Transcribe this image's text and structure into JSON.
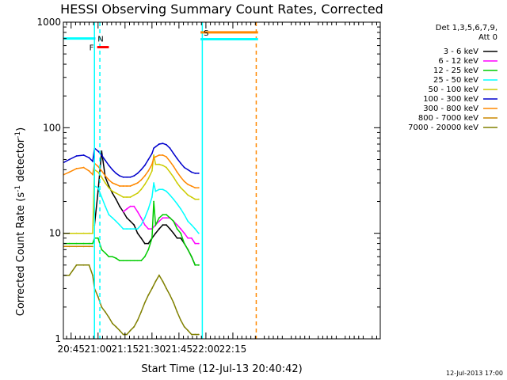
{
  "chart_data": {
    "type": "line",
    "title": "HESSI Observing Summary Count Rates, Corrected",
    "xlabel": "Start Time (12-Jul-13 20:40:42)",
    "ylabel_parts": [
      "Corrected Count Rate (s",
      "-1",
      " detector",
      "-1",
      ")"
    ],
    "yscale": "log",
    "ylim": [
      1,
      1000
    ],
    "y_ticks": [
      1,
      10,
      100,
      1000
    ],
    "y_tick_labels": [
      "1",
      "10",
      "100",
      "1000"
    ],
    "xlim_min": [
      40.7,
      217
    ],
    "x_ticks_min": [
      45,
      60,
      75,
      90,
      105,
      120,
      135
    ],
    "x_tick_labels": [
      "20:45",
      "21:00",
      "21:15",
      "21:30",
      "21:45",
      "22:00",
      "22:15"
    ],
    "legend_title": [
      "Det 1,3,5,6,7,9,",
      "Att 0"
    ],
    "series": [
      {
        "name": "3 - 6 keV",
        "color": "#000000",
        "x": [
          58,
          60,
          62,
          64,
          66,
          68,
          70,
          72,
          74,
          76,
          78,
          80,
          82,
          84,
          86,
          88,
          90,
          92,
          94,
          96,
          98,
          100,
          102,
          104,
          106,
          108,
          110,
          112,
          114,
          116
        ],
        "y": [
          12,
          25,
          60,
          34,
          28,
          24,
          21,
          18,
          16,
          14,
          13,
          12,
          10,
          9,
          8,
          8,
          9,
          10,
          11,
          12,
          12,
          11,
          10,
          9,
          9,
          8,
          7,
          6,
          5,
          5
        ]
      },
      {
        "name": "6 - 12 keV",
        "color": "#ff00ff",
        "x": [
          74,
          76,
          78,
          80,
          82,
          84,
          86,
          88,
          90,
          92,
          94,
          96,
          98,
          100,
          102,
          104,
          106,
          108,
          110,
          112,
          114,
          116
        ],
        "y": [
          16,
          17,
          18,
          18,
          16,
          14,
          12,
          11,
          11,
          12,
          13,
          14,
          14,
          14,
          13,
          12,
          11,
          10,
          9,
          9,
          8,
          8
        ]
      },
      {
        "name": "12 - 25 keV",
        "color": "#00cc00",
        "x": [
          41,
          44,
          48,
          52,
          55,
          57,
          58,
          60,
          62,
          64,
          66,
          68,
          70,
          72,
          74,
          76,
          78,
          80,
          82,
          84,
          86,
          88,
          90,
          91,
          92,
          94,
          96,
          98,
          100,
          102,
          104,
          106,
          108,
          110,
          112,
          114,
          116
        ],
        "y": [
          8,
          8,
          8,
          8,
          8,
          8,
          9,
          9,
          7,
          6.5,
          6,
          6,
          5.8,
          5.5,
          5.5,
          5.5,
          5.5,
          5.5,
          5.5,
          5.5,
          6,
          7,
          9,
          20,
          12,
          14,
          15,
          15,
          14,
          13,
          11,
          10,
          8,
          7,
          6,
          5,
          5
        ]
      },
      {
        "name": "25 - 50 keV",
        "color": "#00ffff",
        "x": [
          58,
          60,
          62,
          64,
          66,
          68,
          70,
          72,
          74,
          76,
          78,
          80,
          82,
          84,
          86,
          88,
          90,
          91,
          92,
          94,
          96,
          98,
          100,
          102,
          104,
          106,
          108,
          110,
          112,
          114,
          116
        ],
        "y": [
          28,
          27,
          22,
          18,
          15,
          14,
          13,
          12,
          11,
          11,
          11,
          11,
          11,
          12,
          14,
          17,
          22,
          30,
          25,
          26,
          26,
          25,
          23,
          21,
          19,
          17,
          15,
          13,
          12,
          11,
          10
        ]
      },
      {
        "name": "50 - 100 keV",
        "color": "#cccc00",
        "x": [
          41,
          44,
          48,
          52,
          55,
          57,
          58,
          60,
          62,
          64,
          66,
          68,
          70,
          72,
          74,
          76,
          78,
          80,
          82,
          84,
          86,
          88,
          90,
          91,
          92,
          94,
          96,
          98,
          100,
          102,
          104,
          106,
          108,
          110,
          112,
          114,
          116
        ],
        "y": [
          10,
          10,
          10,
          10,
          10,
          10,
          40,
          38,
          34,
          30,
          27,
          25,
          24,
          23,
          22,
          22,
          22,
          23,
          24,
          26,
          29,
          33,
          39,
          55,
          45,
          45,
          44,
          42,
          38,
          34,
          30,
          27,
          25,
          23,
          22,
          21,
          21
        ]
      },
      {
        "name": "100 - 300 keV",
        "color": "#0000cc",
        "x": [
          41,
          44,
          48,
          52,
          55,
          57,
          58,
          60,
          62,
          64,
          66,
          68,
          70,
          72,
          74,
          76,
          78,
          80,
          82,
          84,
          86,
          88,
          90,
          91,
          92,
          94,
          96,
          98,
          100,
          102,
          104,
          106,
          108,
          110,
          112,
          114,
          116
        ],
        "y": [
          47,
          50,
          54,
          55,
          52,
          48,
          64,
          60,
          55,
          49,
          44,
          40,
          37,
          35,
          34,
          34,
          34,
          35,
          37,
          40,
          44,
          50,
          57,
          64,
          66,
          70,
          71,
          69,
          64,
          57,
          51,
          46,
          42,
          40,
          38,
          37,
          37
        ]
      },
      {
        "name": "300 - 800 keV",
        "color": "#ff8800",
        "x": [
          41,
          44,
          48,
          52,
          55,
          57,
          58,
          60,
          62,
          64,
          66,
          68,
          70,
          72,
          74,
          76,
          78,
          80,
          82,
          84,
          86,
          88,
          90,
          91,
          92,
          94,
          96,
          98,
          100,
          102,
          104,
          106,
          108,
          110,
          112,
          114,
          116
        ],
        "y": [
          36,
          38,
          41,
          42,
          39,
          36,
          46,
          43,
          39,
          35,
          32,
          30,
          29,
          28,
          28,
          28,
          28,
          29,
          30,
          32,
          35,
          39,
          45,
          52,
          53,
          55,
          55,
          53,
          48,
          43,
          38,
          34,
          31,
          29,
          28,
          27,
          27
        ]
      },
      {
        "name": "800 - 7000 keV",
        "color": "#cc8800",
        "x": [
          41,
          44,
          48,
          52,
          55,
          57
        ],
        "y": [
          7.5,
          7.5,
          7.5,
          7.5,
          7.5,
          7.5
        ]
      },
      {
        "name": "7000 - 20000 keV",
        "color": "#808000",
        "x": [
          41,
          44,
          48,
          52,
          55,
          57,
          58,
          60,
          62,
          64,
          66,
          68,
          70,
          72,
          74,
          76,
          78,
          80,
          82,
          84,
          86,
          88,
          90,
          92,
          94,
          96,
          98,
          100,
          102,
          104,
          106,
          108,
          110,
          112,
          114,
          116
        ],
        "y": [
          4,
          4,
          5,
          5,
          5,
          4,
          3,
          2.5,
          2,
          1.8,
          1.6,
          1.4,
          1.3,
          1.2,
          1.1,
          1.1,
          1.2,
          1.3,
          1.5,
          1.8,
          2.2,
          2.6,
          3,
          3.5,
          4,
          3.5,
          3,
          2.6,
          2.2,
          1.8,
          1.5,
          1.3,
          1.2,
          1.1,
          1.1,
          1.1
        ]
      }
    ],
    "flag_bars": [
      {
        "label": "",
        "color": "#00ffff",
        "x": [
          40.7,
          58
        ],
        "y": 700
      },
      {
        "label": "N",
        "color": "#00ccff",
        "x": [
          58,
          58.5
        ],
        "y": 700
      },
      {
        "label": "F",
        "color": "#ff0000",
        "x": [
          59.5,
          66
        ],
        "y": 580
      },
      {
        "label": "S",
        "color": "#ff8800",
        "x": [
          117,
          149
        ],
        "y": 800
      },
      {
        "label": "",
        "color": "#00ffff",
        "x": [
          117,
          149
        ],
        "y": 690
      }
    ],
    "vertical_lines": [
      {
        "color": "#00ffff",
        "x": 58,
        "style": "solid"
      },
      {
        "color": "#00ffff",
        "x": 61,
        "style": "dashed"
      },
      {
        "color": "#00ffff",
        "x": 118,
        "style": "solid"
      },
      {
        "color": "#ff8800",
        "x": 148,
        "style": "dashed"
      }
    ],
    "footer_text": "12-Jul-2013 17:00"
  }
}
